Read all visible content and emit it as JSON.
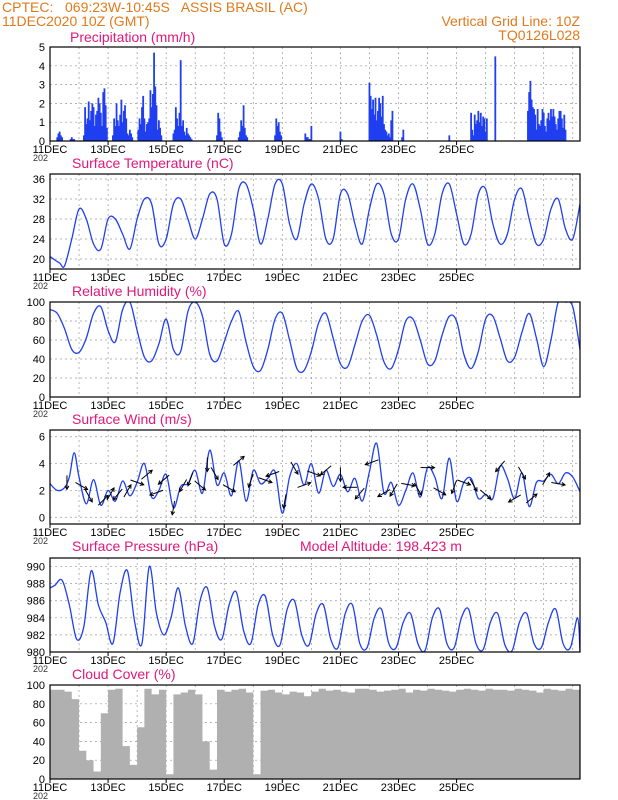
{
  "header": {
    "line1": "CPTEC:   069:23W-10:45S   ASSIS BRASIL (AC)",
    "line2": "11DEC2020 10Z (GMT)",
    "grid_note": "Vertical Grid Line: 10Z",
    "code": "TQ0126L028"
  },
  "colors": {
    "series": "#1f3ff0",
    "title": "#e0187a",
    "header": "#e07a1c",
    "cloud": "#b0b0b0",
    "grid": "#9a9a9a"
  },
  "x_ticks": [
    "11DEC",
    "13DEC",
    "15DEC",
    "17DEC",
    "19DEC",
    "21DEC",
    "23DEC",
    "25DEC"
  ],
  "year_stub": "202",
  "chart_data": [
    {
      "id": "precip",
      "type": "bar",
      "title": "Precipitation (mm/h)",
      "ylim": [
        0,
        5
      ],
      "yticks": [
        0,
        1,
        2,
        3,
        4,
        5
      ],
      "x_hours_from_start": [
        6,
        7,
        8,
        9,
        10,
        17,
        18,
        19,
        20,
        28,
        29,
        30,
        31,
        32,
        33,
        34,
        35,
        36,
        37,
        38,
        39,
        40,
        41,
        42,
        43,
        44,
        45,
        46,
        47,
        52,
        53,
        54,
        55,
        56,
        57,
        58,
        59,
        60,
        61,
        62,
        63,
        64,
        65,
        66,
        67,
        68,
        73,
        74,
        75,
        76,
        77,
        78,
        79,
        80,
        81,
        82,
        83,
        84,
        85,
        86,
        87,
        88,
        89,
        90,
        91,
        92,
        102,
        103,
        104,
        105,
        106,
        107,
        108,
        109,
        110,
        111,
        112,
        113,
        114,
        115,
        116,
        117,
        138,
        139,
        140,
        141,
        142,
        156,
        157,
        158,
        159,
        160,
        161,
        162,
        163,
        186,
        187,
        188,
        189,
        190,
        191,
        211,
        212,
        213,
        214,
        215,
        216,
        240,
        241,
        264,
        265,
        266,
        267,
        268,
        269,
        270,
        271,
        272,
        273,
        274,
        275,
        276,
        277,
        278,
        279,
        280,
        281,
        282,
        283,
        291,
        292,
        330,
        348,
        349,
        350,
        351,
        352,
        353,
        354,
        355,
        356,
        357,
        358,
        359,
        360,
        361,
        368,
        395,
        396,
        397,
        398,
        399,
        400,
        401,
        402,
        403,
        404,
        405,
        406,
        407,
        408,
        409,
        410,
        411,
        412,
        413,
        414,
        415,
        416,
        417,
        418,
        419,
        420,
        421,
        422,
        423,
        424,
        425,
        426,
        427,
        428,
        429,
        430,
        431,
        432
      ],
      "values": [
        0.2,
        0.4,
        0.5,
        0.3,
        0.2,
        0.1,
        0.2,
        0.1,
        0.1,
        0.3,
        1.8,
        0.9,
        1.2,
        2.1,
        1.1,
        1.6,
        2.0,
        1.8,
        0.8,
        1.4,
        1.6,
        2.3,
        2.0,
        1.5,
        0.8,
        2.6,
        2.8,
        1.9,
        0.7,
        0.3,
        1.2,
        0.8,
        2.0,
        1.1,
        0.8,
        1.4,
        2.2,
        1.0,
        1.6,
        1.9,
        1.2,
        0.4,
        0.3,
        0.6,
        0.4,
        0.2,
        0.6,
        1.2,
        0.9,
        1.8,
        2.4,
        1.2,
        0.5,
        0.9,
        1.0,
        1.2,
        2.7,
        1.8,
        2.5,
        4.7,
        2.9,
        1.9,
        0.6,
        1.1,
        0.7,
        0.3,
        0.4,
        0.6,
        1.8,
        1.2,
        0.8,
        1.5,
        4.3,
        0.8,
        1.1,
        0.5,
        0.3,
        0.7,
        0.4,
        0.3,
        0.2,
        0.1,
        0.3,
        1.5,
        1.2,
        0.5,
        0.2,
        0.2,
        0.5,
        1.1,
        0.8,
        1.9,
        0.7,
        0.3,
        0.2,
        0.3,
        1.2,
        0.8,
        1.0,
        0.5,
        0.3,
        0.4,
        0.2,
        0.2,
        0.1,
        0.1,
        0.8,
        0.5,
        0.1,
        3.1,
        2.4,
        1.7,
        2.2,
        1.4,
        2.3,
        1.1,
        1.6,
        2.3,
        2.0,
        1.3,
        2.4,
        0.9,
        0.6,
        0.5,
        0.3,
        0.4,
        0.2,
        1.1,
        1.6,
        0.2,
        0.6,
        0.3,
        1.5,
        0.6,
        0.3,
        1.4,
        0.9,
        1.1,
        1.6,
        1.0,
        1.5,
        0.8,
        1.3,
        1.2,
        0.5,
        1.2,
        4.5,
        1.6,
        2.6,
        3.2,
        2.2,
        1.8,
        1.7,
        1.4,
        0.6,
        1.7,
        0.9,
        0.8,
        1.1,
        1.7,
        1.5,
        0.8,
        0.5,
        1.2,
        1.5,
        1.1,
        1.7,
        1.3,
        1.7,
        1.3,
        0.9,
        0.6,
        1.2,
        1.6,
        1.6,
        1.2,
        0.7,
        1.4,
        0.6
      ]
    },
    {
      "id": "temp",
      "type": "line",
      "title": "Surface Temperature (nC)",
      "ylim": [
        18,
        37
      ],
      "yticks": [
        20,
        24,
        28,
        32,
        36
      ],
      "x_hours_from_start": [
        0,
        4,
        8,
        12,
        18,
        24,
        30,
        36,
        42,
        48,
        54,
        60,
        66,
        72,
        78,
        84,
        90,
        96,
        102,
        108,
        114,
        120,
        126,
        132,
        138,
        144,
        150,
        156,
        162,
        168,
        174,
        180,
        186,
        192,
        198,
        204,
        210,
        216,
        222,
        228,
        234,
        240,
        246,
        252,
        258,
        264,
        270,
        276,
        282,
        288,
        294,
        300,
        306,
        312,
        318,
        324,
        330,
        336,
        342,
        348,
        354,
        360,
        366,
        372,
        378,
        384,
        390,
        396,
        402,
        408,
        414,
        420,
        426,
        432,
        438
      ],
      "values": [
        20.5,
        19.8,
        19.2,
        18.6,
        24,
        30,
        28,
        23,
        22,
        28,
        28,
        25,
        22,
        28,
        32,
        31,
        23,
        24,
        31,
        32,
        28,
        24,
        28,
        33,
        32,
        23,
        25,
        34,
        35,
        30,
        23,
        28,
        35,
        35,
        27,
        24,
        31,
        35,
        32,
        24,
        24,
        33,
        33,
        27,
        23,
        30,
        35,
        33,
        25,
        24,
        32,
        35,
        30,
        23,
        25,
        33,
        35,
        29,
        23,
        25,
        33,
        34,
        27,
        23,
        25,
        32,
        34,
        28,
        23,
        24,
        30,
        32,
        26,
        24,
        31
      ]
    },
    {
      "id": "rh",
      "type": "line",
      "title": "Relative Humidity (%)",
      "ylim": [
        0,
        100
      ],
      "yticks": [
        0,
        20,
        40,
        60,
        80,
        100
      ],
      "x_hours_from_start": [
        0,
        6,
        12,
        18,
        24,
        30,
        36,
        42,
        48,
        54,
        60,
        66,
        72,
        78,
        84,
        90,
        96,
        102,
        108,
        114,
        120,
        126,
        132,
        138,
        144,
        150,
        156,
        162,
        168,
        174,
        180,
        186,
        192,
        198,
        204,
        210,
        216,
        222,
        228,
        234,
        240,
        246,
        252,
        258,
        264,
        270,
        276,
        282,
        288,
        294,
        300,
        306,
        312,
        318,
        324,
        330,
        336,
        342,
        348,
        354,
        360,
        366,
        372,
        378,
        384,
        390,
        396,
        402,
        408,
        414,
        420,
        426,
        432,
        438
      ],
      "values": [
        92,
        88,
        72,
        50,
        47,
        62,
        88,
        95,
        70,
        58,
        92,
        100,
        70,
        42,
        38,
        56,
        82,
        50,
        48,
        90,
        100,
        85,
        45,
        38,
        58,
        80,
        90,
        58,
        32,
        28,
        50,
        82,
        88,
        60,
        30,
        28,
        48,
        78,
        88,
        62,
        35,
        32,
        55,
        80,
        86,
        65,
        37,
        30,
        50,
        80,
        82,
        60,
        35,
        38,
        65,
        85,
        80,
        45,
        30,
        48,
        82,
        85,
        62,
        38,
        42,
        68,
        88,
        62,
        32,
        60,
        100,
        100,
        95,
        50
      ]
    },
    {
      "id": "wind",
      "type": "line",
      "title": "Surface Wind (m/s)",
      "ylim": [
        -0.5,
        6.5
      ],
      "yticks": [
        0,
        2,
        4,
        6
      ],
      "x_hours_from_start": [
        0,
        6,
        12,
        16,
        20,
        24,
        30,
        36,
        42,
        48,
        54,
        60,
        66,
        72,
        78,
        84,
        90,
        96,
        102,
        108,
        114,
        120,
        126,
        132,
        138,
        144,
        150,
        156,
        162,
        168,
        174,
        180,
        186,
        192,
        198,
        204,
        210,
        216,
        222,
        228,
        234,
        240,
        246,
        252,
        258,
        264,
        270,
        276,
        282,
        288,
        294,
        300,
        306,
        312,
        318,
        324,
        330,
        336,
        342,
        348,
        354,
        360,
        366,
        372,
        378,
        384,
        390,
        396,
        402,
        408,
        414,
        420,
        426,
        432,
        438
      ],
      "values": [
        2.5,
        2.0,
        2.2,
        3.0,
        4.8,
        3.0,
        1.0,
        2.8,
        0.9,
        2.0,
        1.2,
        2.7,
        1.6,
        2.6,
        4.0,
        1.5,
        2.0,
        3.2,
        0.7,
        2.3,
        2.5,
        3.5,
        1.8,
        5.0,
        2.4,
        3.3,
        1.6,
        4.2,
        1.2,
        3.5,
        2.5,
        2.9,
        3.4,
        0.3,
        3.0,
        4.0,
        2.4,
        4.0,
        1.8,
        3.5,
        2.3,
        3.2,
        1.9,
        2.9,
        1.2,
        3.4,
        5.5,
        1.8,
        2.6,
        0.9,
        2.0,
        3.3,
        1.5,
        3.7,
        3.0,
        1.4,
        4.4,
        1.2,
        2.6,
        2.9,
        1.4,
        1.7,
        1.4,
        3.8,
        2.9,
        1.4,
        3.3,
        0.8,
        2.6,
        2.7,
        3.2,
        2.5,
        3.3,
        3.0,
        1.9
      ],
      "arrows_hours": [
        14,
        26,
        32,
        44,
        50,
        56,
        64,
        72,
        80,
        88,
        94,
        102,
        110,
        116,
        124,
        130,
        136,
        148,
        156,
        166,
        178,
        184,
        194,
        202,
        210,
        218,
        228,
        240,
        248,
        256,
        266,
        276,
        284,
        296,
        304,
        312,
        322,
        334,
        342,
        350,
        360,
        372,
        384,
        390,
        398,
        410,
        420
      ],
      "arrows_deg": [
        270,
        330,
        300,
        45,
        60,
        230,
        60,
        340,
        40,
        200,
        220,
        260,
        240,
        250,
        320,
        270,
        300,
        330,
        40,
        250,
        340,
        200,
        260,
        300,
        20,
        340,
        220,
        270,
        180,
        230,
        200,
        210,
        240,
        350,
        300,
        360,
        330,
        250,
        340,
        300,
        320,
        230,
        210,
        300,
        40,
        60,
        350
      ]
    },
    {
      "id": "pres",
      "type": "line",
      "title": "Surface Pressure (hPa)",
      "note": "Model Altitude: 198.423 m",
      "ylim": [
        980,
        991
      ],
      "yticks": [
        980,
        982,
        984,
        986,
        988,
        990
      ],
      "x_hours_from_start": [
        0,
        4,
        10,
        16,
        22,
        28,
        34,
        40,
        46,
        52,
        58,
        64,
        70,
        76,
        82,
        88,
        94,
        100,
        106,
        112,
        118,
        124,
        130,
        136,
        142,
        148,
        154,
        160,
        166,
        172,
        178,
        184,
        190,
        196,
        202,
        208,
        214,
        220,
        226,
        232,
        238,
        244,
        250,
        256,
        262,
        268,
        274,
        280,
        286,
        292,
        298,
        304,
        310,
        316,
        322,
        328,
        334,
        340,
        346,
        352,
        358,
        364,
        370,
        376,
        382,
        388,
        394,
        400,
        406,
        412,
        418,
        424,
        430,
        436,
        438
      ],
      "values": [
        987.5,
        987.8,
        988.4,
        985.5,
        981.5,
        983.0,
        989.5,
        985.5,
        983.5,
        981.0,
        987.0,
        989.5,
        983.5,
        981.0,
        990.0,
        984.5,
        982.0,
        984.0,
        987.5,
        983.0,
        981.0,
        986.0,
        987.5,
        983.0,
        981.5,
        985.5,
        987.0,
        982.5,
        981.0,
        985.5,
        986.5,
        982.0,
        980.8,
        985.0,
        986.0,
        982.0,
        980.8,
        984.5,
        985.5,
        981.5,
        980.5,
        984.5,
        985.5,
        981.0,
        980.5,
        984.0,
        985.0,
        981.0,
        980.5,
        983.5,
        984.5,
        981.0,
        980.2,
        984.0,
        985.0,
        981.0,
        980.5,
        984.0,
        985.0,
        981.0,
        980.3,
        983.5,
        984.5,
        980.8,
        980.2,
        983.5,
        984.5,
        981.0,
        980.5,
        983.5,
        985.0,
        981.0,
        980.5,
        984.0,
        980.0
      ]
    },
    {
      "id": "cloud",
      "type": "bar",
      "title": "Cloud Cover (%)",
      "ylim": [
        0,
        100
      ],
      "yticks": [
        0,
        20,
        40,
        60,
        80,
        100
      ],
      "x_hours_from_start": [
        0,
        6,
        12,
        18,
        24,
        30,
        36,
        42,
        48,
        54,
        60,
        66,
        72,
        78,
        84,
        90,
        96,
        102,
        108,
        114,
        120,
        126,
        132,
        138,
        144,
        150,
        156,
        162,
        168,
        174,
        180,
        186,
        192,
        198,
        204,
        210,
        216,
        222,
        228,
        234,
        240,
        246,
        252,
        258,
        264,
        270,
        276,
        282,
        288,
        294,
        300,
        306,
        312,
        318,
        324,
        330,
        336,
        342,
        348,
        354,
        360,
        366,
        372,
        378,
        384,
        390,
        396,
        402,
        408,
        414,
        420,
        426,
        432,
        438
      ],
      "values": [
        95,
        95,
        93,
        85,
        30,
        20,
        8,
        70,
        95,
        96,
        35,
        15,
        55,
        96,
        90,
        95,
        5,
        90,
        92,
        95,
        90,
        40,
        10,
        95,
        93,
        95,
        96,
        92,
        5,
        94,
        95,
        92,
        90,
        93,
        92,
        88,
        93,
        96,
        94,
        95,
        93,
        92,
        96,
        96,
        95,
        93,
        94,
        95,
        96,
        92,
        95,
        94,
        96,
        95,
        94,
        93,
        95,
        96,
        95,
        94,
        96,
        95,
        95,
        94,
        96,
        95,
        94,
        92,
        96,
        95,
        94,
        96,
        95,
        95
      ]
    }
  ]
}
